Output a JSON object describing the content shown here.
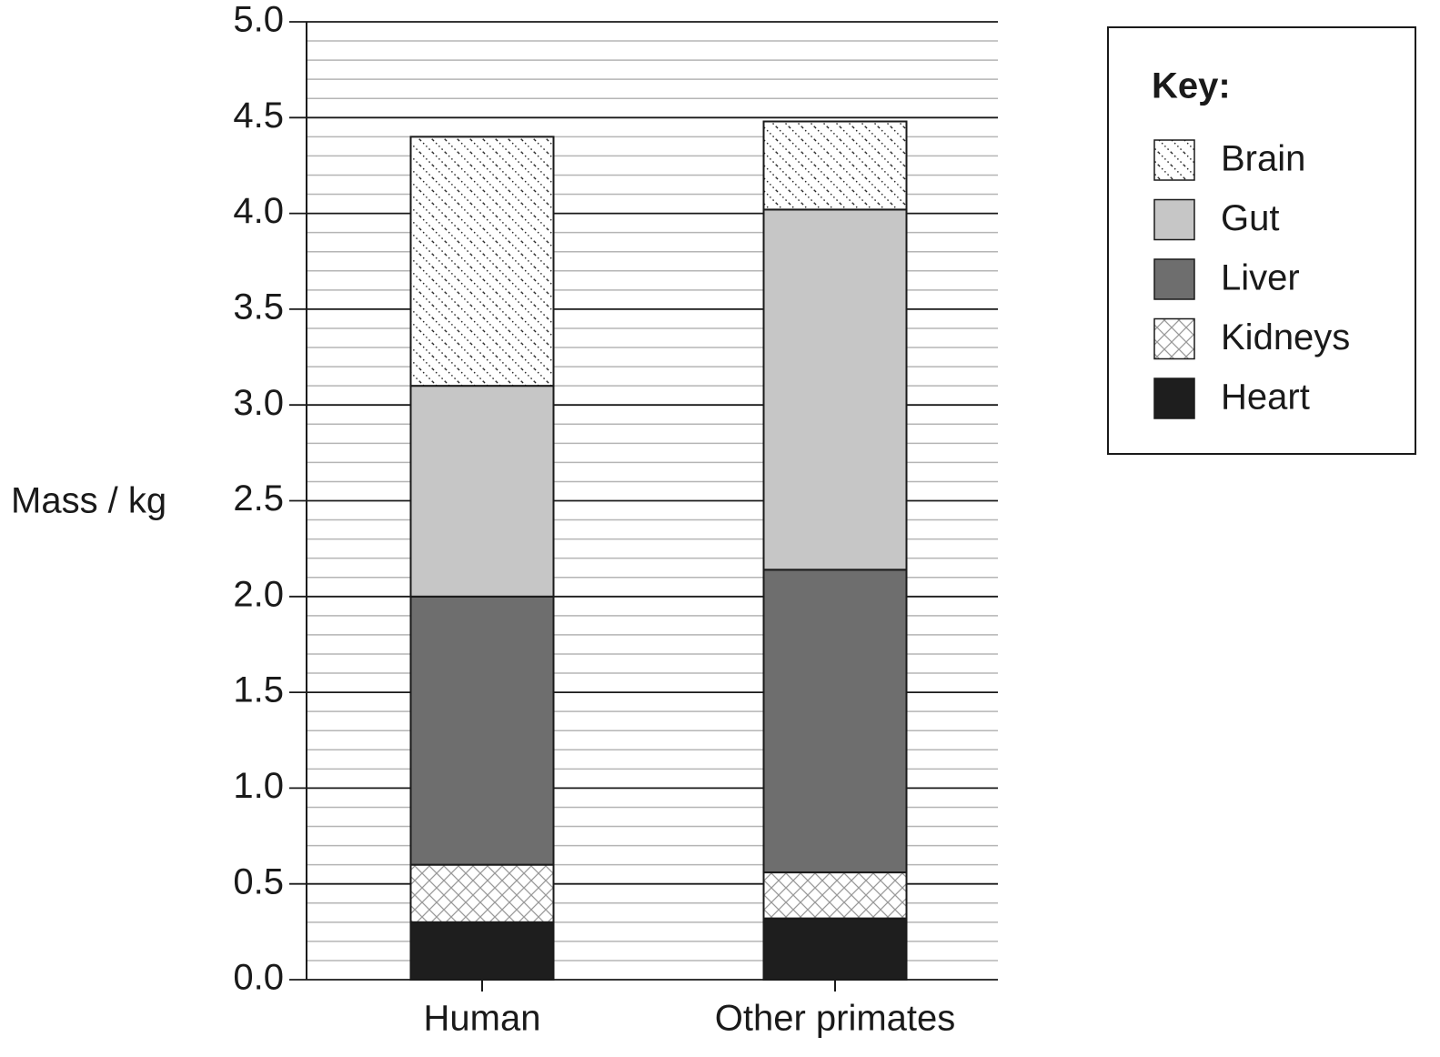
{
  "chart_data": {
    "type": "stacked-bar",
    "y_label": "Mass / kg",
    "legend_title": "Key:",
    "legend": "upper right",
    "grid": true,
    "categories": [
      "Human",
      "Other primates"
    ],
    "series": [
      {
        "name": "Brain",
        "color": "#ffffff",
        "pattern": "diagonal-dots",
        "values": [
          1.3,
          0.46
        ]
      },
      {
        "name": "Gut",
        "color": "#c6c6c6",
        "values": [
          1.1,
          1.88
        ]
      },
      {
        "name": "Liver",
        "color": "#6e6e6e",
        "values": [
          1.4,
          1.58
        ]
      },
      {
        "name": "Kidneys",
        "color": "#ffffff",
        "pattern": "cross",
        "values": [
          0.3,
          0.24
        ]
      },
      {
        "name": "Heart",
        "color": "#1e1e1e",
        "values": [
          0.3,
          0.32
        ]
      }
    ],
    "ylim": [
      0,
      5
    ],
    "yticks": [
      {
        "value": 0,
        "label": "0.0"
      },
      0.5,
      {
        "value": 1,
        "label": "1.0"
      },
      1.5,
      {
        "value": 2,
        "label": "2.0"
      },
      2.5,
      {
        "value": 3,
        "label": "3.0"
      },
      3.5,
      {
        "value": 4,
        "label": "4.0"
      },
      4.5,
      {
        "value": 5,
        "label": "5.0"
      }
    ]
  }
}
